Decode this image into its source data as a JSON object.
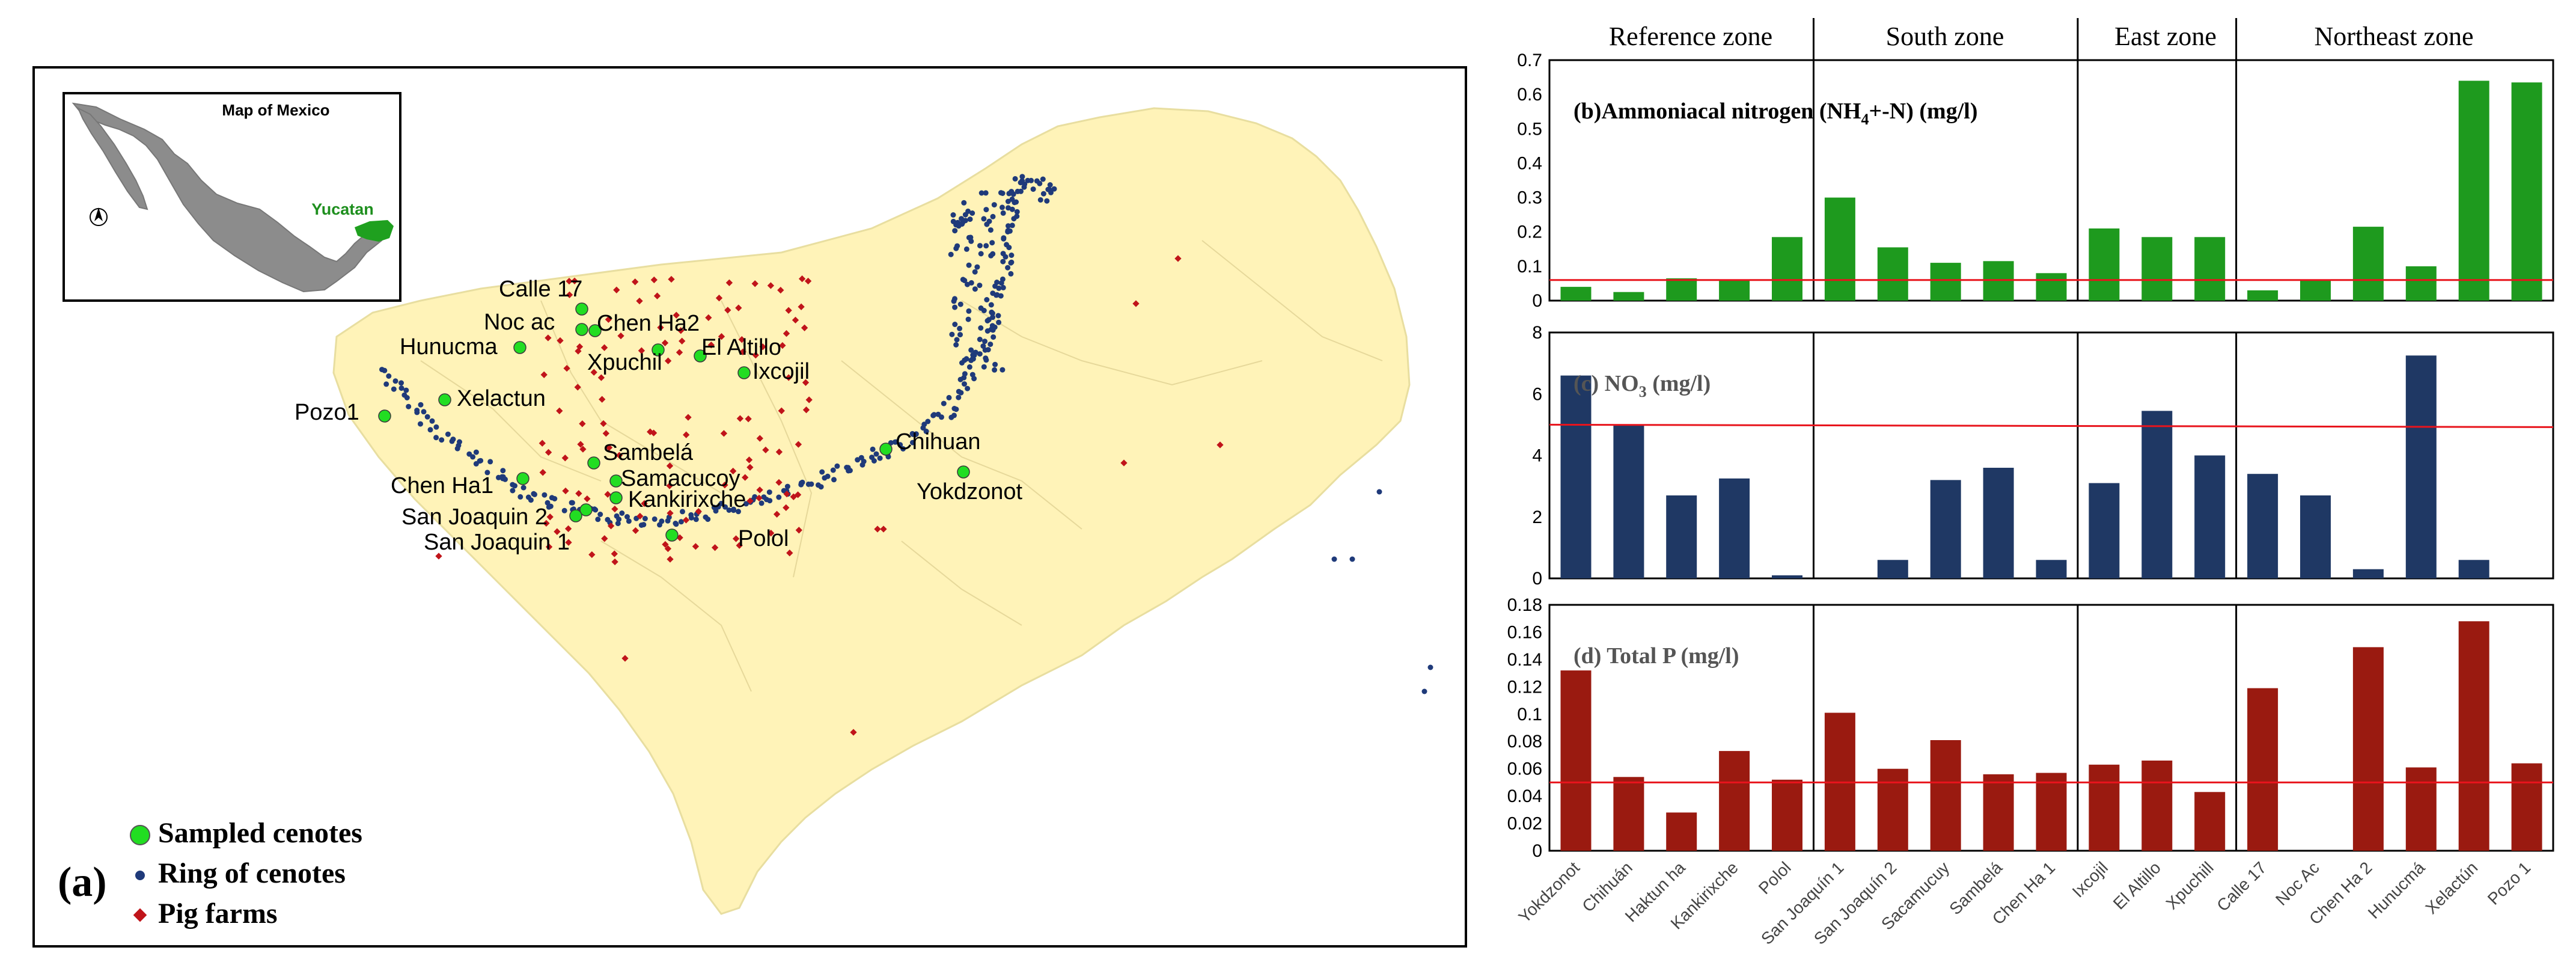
{
  "map": {
    "label": "(a)",
    "inset_title": "Map of Mexico",
    "inset_region_label": "Yucatan",
    "legend": [
      "Sampled cenotes",
      "Ring of cenotes",
      "Pig farms"
    ],
    "site_labels": [
      "Calle 17",
      "Noc ac",
      "Chen Ha2",
      "Hunucma",
      "Xpuchil",
      "El Altillo",
      "Ixcojil",
      "Pozo1",
      "Xelactun",
      "Sambelá",
      "Chihuan",
      "Chen Ha1",
      "Samacucoy",
      "Kankirixche",
      "Yokdzonot",
      "San Joaquin 2",
      "San Joaquin 1",
      "Polol"
    ],
    "colors": {
      "land": "#FFF3B8",
      "sampled": "#22DD22",
      "ring": "#1F3A7A",
      "farms": "#C0141A"
    }
  },
  "chart_data": {
    "type": "bar",
    "zones": [
      "Reference zone",
      "South zone",
      "East zone",
      "Northeast zone"
    ],
    "categories": [
      "Yokdzonot",
      "Chihuán",
      "Haktun ha",
      "Kankirixche",
      "Polol",
      "San Joaquín 1",
      "San Joaquín 2",
      "Sacamucuy",
      "Sambelá",
      "Chen Ha 1",
      "Ixcojil",
      "El Altillo",
      "Xpuchill",
      "Calle 17",
      "Noc Ac",
      "Chen Ha 2",
      "Hunucmá",
      "Xelactún",
      "Pozo 1"
    ],
    "panels": [
      {
        "title_lead": "(b)Ammoniacal nitrogen (NH",
        "title_sub": "4",
        "title_tail": "+-N) (mg/l)",
        "color": "#1E9A1E",
        "ylim": [
          0,
          0.7
        ],
        "yticks": [
          "0",
          "0.1",
          "0.2",
          "0.3",
          "0.4",
          "0.5",
          "0.6",
          "0.7"
        ],
        "threshold": 0.06,
        "values": [
          0.04,
          0.025,
          0.065,
          0.06,
          0.185,
          0.3,
          0.155,
          0.11,
          0.115,
          0.08,
          0.21,
          0.185,
          0.185,
          0.03,
          0.06,
          0.215,
          0.1,
          0.64,
          0.635
        ]
      },
      {
        "title_lead": "(c) NO",
        "title_sub": "3",
        "title_tail": " (mg/l)",
        "color": "#1F3864",
        "ylim": [
          0,
          8
        ],
        "yticks": [
          "0",
          "2",
          "4",
          "6",
          "8"
        ],
        "threshold": 5.0,
        "values": [
          6.6,
          5.0,
          2.7,
          3.25,
          0.1,
          0,
          0.6,
          3.2,
          3.6,
          0.6,
          3.1,
          5.45,
          4.0,
          3.4,
          2.7,
          0.3,
          7.25,
          0.6,
          null
        ]
      },
      {
        "title_lead": "(d) Total P (mg/l)",
        "title_sub": "",
        "title_tail": "",
        "color": "#9A1A10",
        "ylim": [
          0,
          0.18
        ],
        "yticks": [
          "0",
          "0.02",
          "0.04",
          "0.06",
          "0.08",
          "0.1",
          "0.12",
          "0.14",
          "0.16",
          "0.18"
        ],
        "threshold": 0.05,
        "values": [
          0.132,
          0.054,
          0.028,
          0.073,
          0.052,
          0.101,
          0.06,
          0.081,
          0.056,
          0.057,
          0.063,
          0.066,
          0.043,
          0.119,
          0,
          0.149,
          0.061,
          0.168,
          0.064
        ]
      }
    ],
    "threshold_color": "#E8141C"
  }
}
